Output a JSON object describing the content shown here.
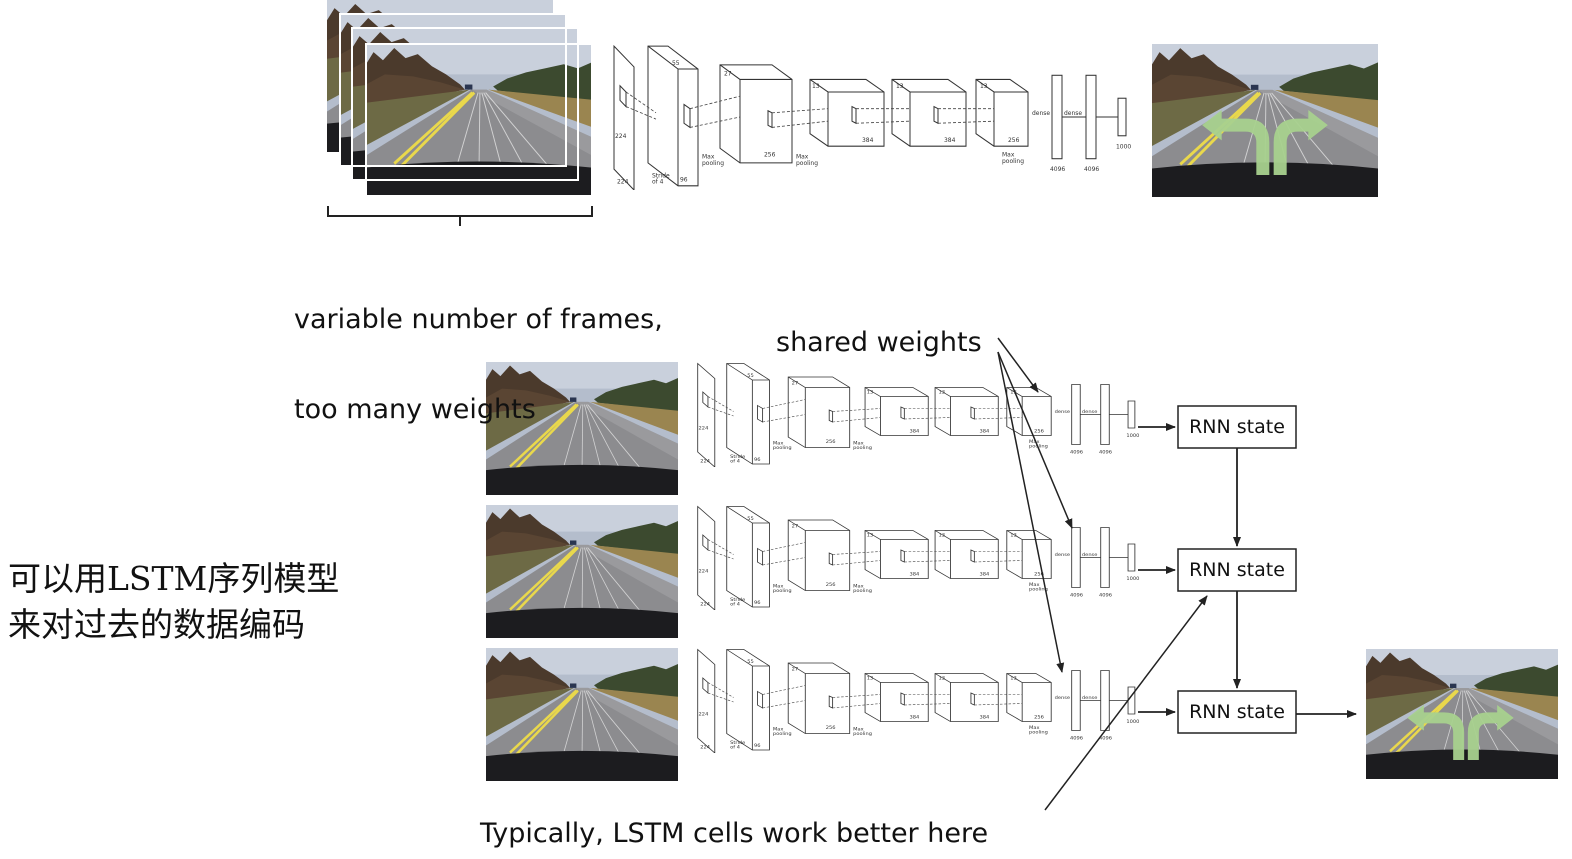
{
  "top_caption": {
    "line1": "variable number of frames,",
    "line2": "too many weights"
  },
  "shared_weights_label": "shared weights",
  "rnn_label": "RNN state",
  "rnn_states": [
    "RNN state",
    "RNN state",
    "RNN state"
  ],
  "bottom_caption": "Typically, LSTM cells work better here",
  "side_note": {
    "line1": "可以用LSTM序列模型",
    "line2": "来对过去的数据编码"
  },
  "cnn_labels": {
    "c1_dims": [
      "224",
      "224",
      "11",
      "11"
    ],
    "stride": "Stride of 4",
    "c2_dims": [
      "55",
      "55",
      "96"
    ],
    "c3_dims": [
      "27",
      "27",
      "256"
    ],
    "c4_dims": [
      "13",
      "13",
      "384"
    ],
    "c5_dims": [
      "13",
      "13",
      "384"
    ],
    "c6_dims": [
      "13",
      "13",
      "256"
    ],
    "pool": "Max pooling",
    "dense": "dense",
    "fc": [
      "4096",
      "4096",
      "1000"
    ]
  },
  "colors": {
    "sky": "#aeb8c8",
    "trees": "#4a3a2c",
    "road": "#8a8a8c",
    "yellow_line": "#e8d64a",
    "dashboard": "#1b1b1e",
    "grass": "#8b7a45",
    "arrow_green": "#a6cf8c",
    "line": "#222222"
  },
  "icons": [
    "road-photo",
    "cnn-architecture",
    "turn-arrow-icon"
  ]
}
